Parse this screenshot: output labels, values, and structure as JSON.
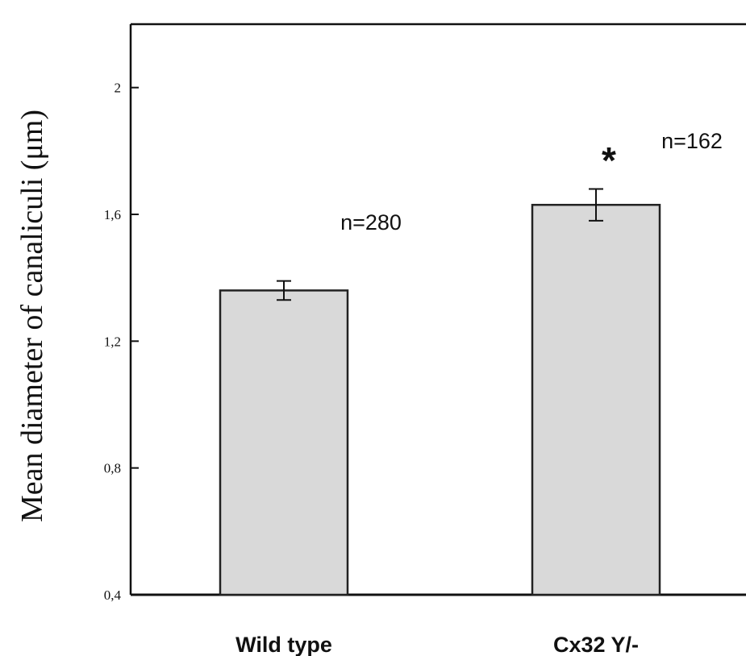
{
  "chart_data": {
    "type": "bar",
    "categories": [
      "Wild type",
      "Cx32 Y/-"
    ],
    "values": [
      1.36,
      1.63
    ],
    "errors": [
      0.03,
      0.05
    ],
    "annotations": [
      "n=280",
      "n=162"
    ],
    "significance": [
      "",
      "*"
    ],
    "ylabel": "Mean diameter of canaliculi (μm)",
    "ylim": [
      0.4,
      2.2
    ],
    "yticks": [
      0.4,
      0.8,
      1.2,
      1.6,
      2.0
    ],
    "ytick_labels": [
      "0,4",
      "0,8",
      "1,2",
      "1,6",
      "2"
    ],
    "bar_color": "#d9d9d9",
    "grid": false
  }
}
